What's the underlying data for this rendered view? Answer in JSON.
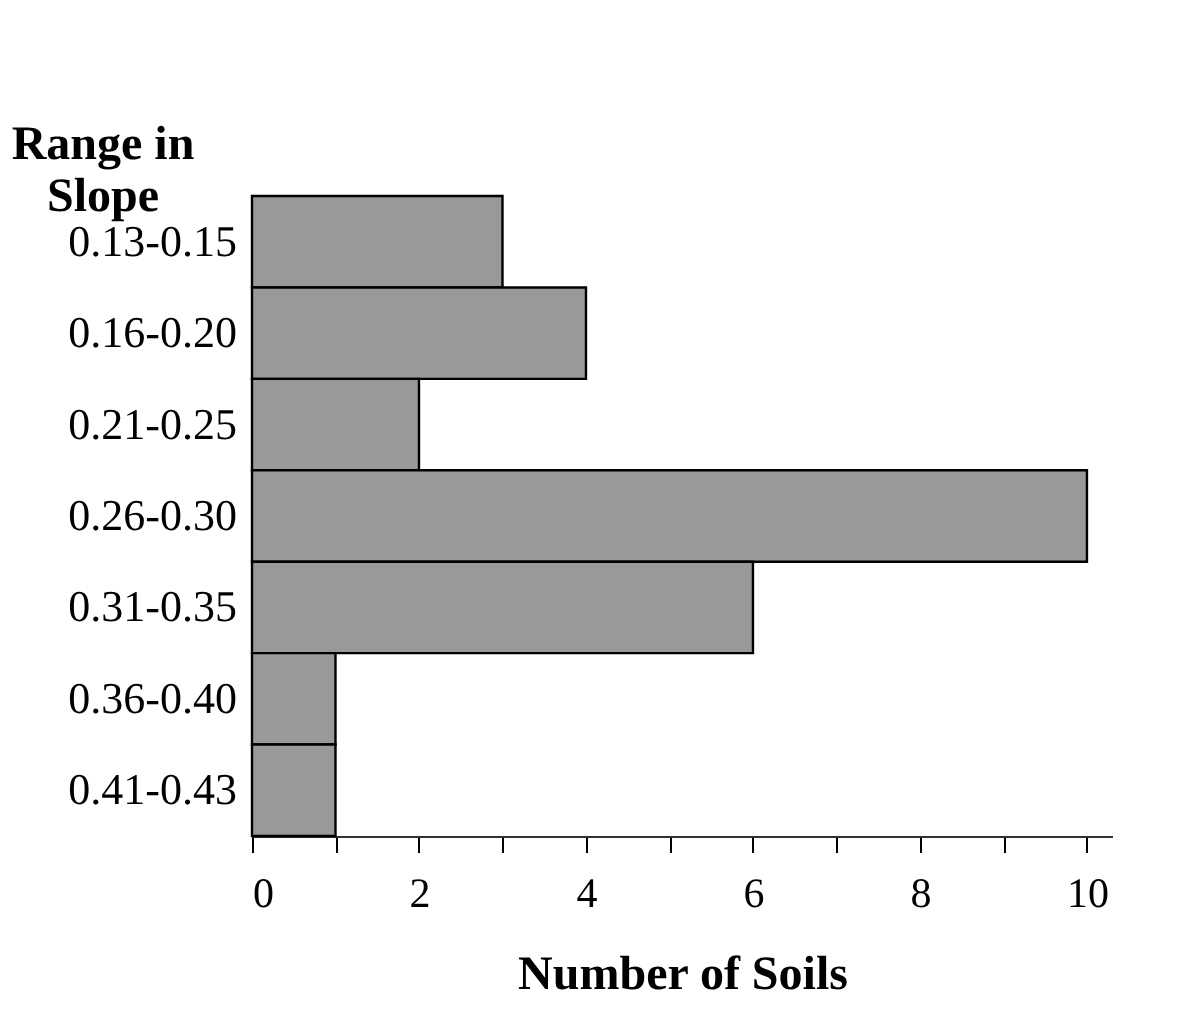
{
  "chart_data": {
    "type": "bar",
    "orientation": "horizontal",
    "xlabel": "Number of Soils",
    "ylabel": "Range in Slope",
    "categories": [
      "0.13-0.15",
      "0.16-0.20",
      "0.21-0.25",
      "0.26-0.30",
      "0.31-0.35",
      "0.36-0.40",
      "0.41-0.43"
    ],
    "values": [
      3,
      4,
      2,
      10,
      6,
      1,
      1
    ],
    "color": "#999999",
    "xlim": [
      0,
      10.3
    ],
    "xticks": [
      0,
      {
        "value": 1,
        "label": null
      },
      2,
      {
        "value": 3,
        "label": null
      },
      4,
      {
        "value": 5,
        "label": null
      },
      6,
      {
        "value": 7,
        "label": null
      },
      8,
      {
        "value": 9,
        "label": null
      },
      10
    ],
    "grid": false
  }
}
